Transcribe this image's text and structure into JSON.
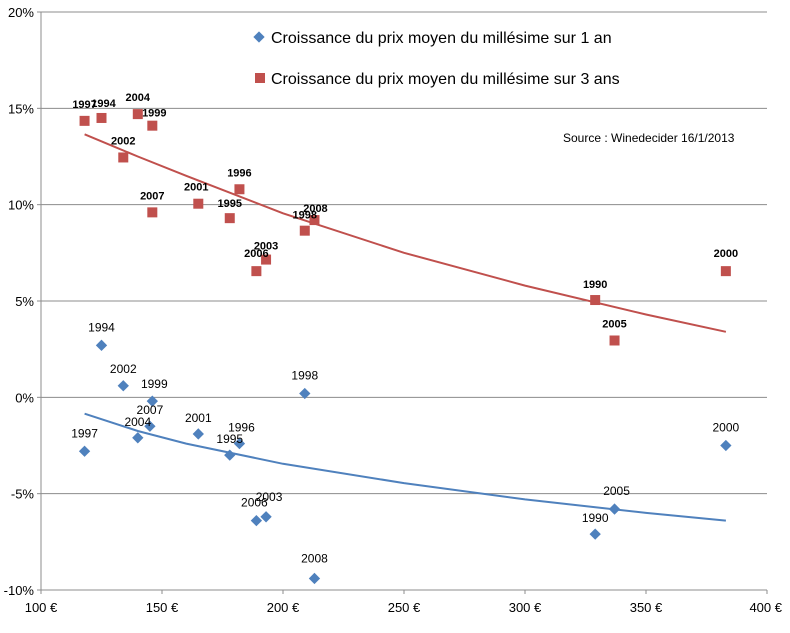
{
  "chart_data": {
    "type": "scatter",
    "xlim": [
      100,
      400
    ],
    "ylim": [
      -10,
      20
    ],
    "x_ticks": [
      "100 €",
      "150 €",
      "200 €",
      "250 €",
      "300 €",
      "350 €",
      "400 €"
    ],
    "y_ticks": [
      "20%",
      "15%",
      "10%",
      "5%",
      "0%",
      "-5%",
      "-10%"
    ],
    "grid": "horizontal",
    "legend_position": "top-right",
    "source": "Source : Winedecider 16/1/2013",
    "series": [
      {
        "name": "Croissance du prix moyen du millésime sur 1 an",
        "color": "#4f81bd",
        "marker": "diamond",
        "points": [
          {
            "label": "1997",
            "x": 118,
            "y": -2.8
          },
          {
            "label": "1994",
            "x": 125,
            "y": 2.7
          },
          {
            "label": "2002",
            "x": 134,
            "y": 0.6
          },
          {
            "label": "2004",
            "x": 140,
            "y": -2.1
          },
          {
            "label": "1999",
            "x": 146,
            "y": -0.2
          },
          {
            "label": "2007",
            "x": 145,
            "y": -1.5
          },
          {
            "label": "2001",
            "x": 165,
            "y": -1.9
          },
          {
            "label": "1995",
            "x": 178,
            "y": -3.0
          },
          {
            "label": "1996",
            "x": 182,
            "y": -2.4
          },
          {
            "label": "2006",
            "x": 189,
            "y": -6.4
          },
          {
            "label": "2003",
            "x": 193,
            "y": -6.2
          },
          {
            "label": "1998",
            "x": 209,
            "y": 0.2
          },
          {
            "label": "2008",
            "x": 213,
            "y": -9.4
          },
          {
            "label": "1990",
            "x": 329,
            "y": -7.1
          },
          {
            "label": "2005",
            "x": 337,
            "y": -5.8
          },
          {
            "label": "2000",
            "x": 383,
            "y": -2.5
          }
        ],
        "trend": [
          {
            "x": 118,
            "y": -0.85
          },
          {
            "x": 140,
            "y": -1.75
          },
          {
            "x": 160,
            "y": -2.4
          },
          {
            "x": 200,
            "y": -3.45
          },
          {
            "x": 250,
            "y": -4.45
          },
          {
            "x": 300,
            "y": -5.3
          },
          {
            "x": 350,
            "y": -6.0
          },
          {
            "x": 383,
            "y": -6.4
          }
        ]
      },
      {
        "name": "Croissance du prix moyen du millésime sur 3 ans",
        "color": "#c0504d",
        "marker": "square",
        "points": [
          {
            "label": "1997",
            "x": 118,
            "y": 14.35
          },
          {
            "label": "1994",
            "x": 125,
            "y": 14.5
          },
          {
            "label": "2004",
            "x": 140,
            "y": 14.7
          },
          {
            "label": "1999",
            "x": 146,
            "y": 14.1
          },
          {
            "label": "2002",
            "x": 134,
            "y": 12.45
          },
          {
            "label": "2007",
            "x": 146,
            "y": 9.6
          },
          {
            "label": "2001",
            "x": 165,
            "y": 10.05
          },
          {
            "label": "1995",
            "x": 178,
            "y": 9.3
          },
          {
            "label": "1996",
            "x": 182,
            "y": 10.8
          },
          {
            "label": "2008",
            "x": 213,
            "y": 9.2
          },
          {
            "label": "1998",
            "x": 209,
            "y": 8.65
          },
          {
            "label": "2003",
            "x": 193,
            "y": 7.15
          },
          {
            "label": "2006",
            "x": 189,
            "y": 6.55
          },
          {
            "label": "1990",
            "x": 329,
            "y": 5.05
          },
          {
            "label": "2005",
            "x": 337,
            "y": 2.95
          },
          {
            "label": "2000",
            "x": 383,
            "y": 6.55
          }
        ],
        "trend": [
          {
            "x": 118,
            "y": 13.65
          },
          {
            "x": 140,
            "y": 12.5
          },
          {
            "x": 160,
            "y": 11.5
          },
          {
            "x": 200,
            "y": 9.55
          },
          {
            "x": 250,
            "y": 7.5
          },
          {
            "x": 300,
            "y": 5.8
          },
          {
            "x": 350,
            "y": 4.3
          },
          {
            "x": 383,
            "y": 3.4
          }
        ]
      }
    ]
  }
}
